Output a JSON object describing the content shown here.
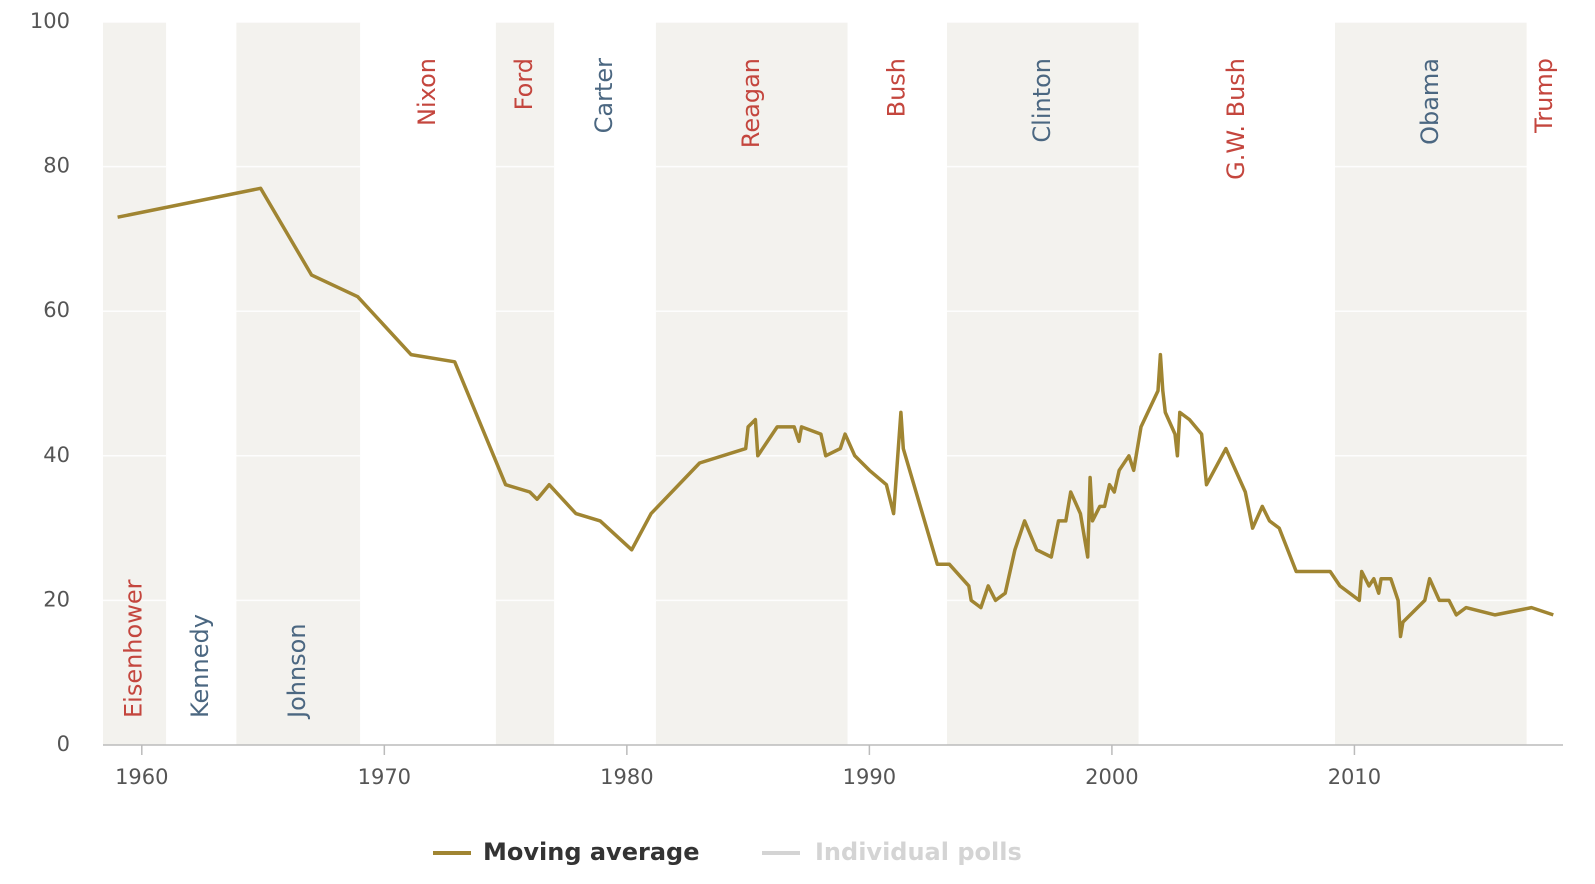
{
  "chart_data": {
    "type": "line",
    "xlim": [
      1958.4,
      2018.6
    ],
    "ylim": [
      0,
      100
    ],
    "xticks": [
      1960,
      1970,
      1980,
      1990,
      2000,
      2010
    ],
    "yticks": [
      0,
      20,
      40,
      60,
      80,
      100
    ],
    "grid": true,
    "legend": "bottom",
    "presidents": [
      {
        "name": "Eisenhower",
        "start": 1958.4,
        "end": 1961,
        "color": "#c4463e",
        "shaded": true
      },
      {
        "name": "Kennedy",
        "start": 1961,
        "end": 1963.9,
        "color": "#4b6781",
        "shaded": false
      },
      {
        "name": "Johnson",
        "start": 1963.9,
        "end": 1969,
        "color": "#4b6781",
        "shaded": true
      },
      {
        "name": "Nixon",
        "start": 1969,
        "end": 1974.6,
        "color": "#c4463e",
        "shaded": false
      },
      {
        "name": "Ford",
        "start": 1974.6,
        "end": 1977,
        "color": "#c4463e",
        "shaded": true
      },
      {
        "name": "Carter",
        "start": 1977,
        "end": 1981.2,
        "color": "#4b6781",
        "shaded": false
      },
      {
        "name": "Reagan",
        "start": 1981.2,
        "end": 1989.1,
        "color": "#c4463e",
        "shaded": true
      },
      {
        "name": "Bush",
        "start": 1989.1,
        "end": 1993.2,
        "color": "#c4463e",
        "shaded": false
      },
      {
        "name": "Clinton",
        "start": 1993.2,
        "end": 2001.1,
        "color": "#4b6781",
        "shaded": true
      },
      {
        "name": "G.W. Bush",
        "start": 2001.1,
        "end": 2009.2,
        "color": "#c4463e",
        "shaded": false
      },
      {
        "name": "Obama",
        "start": 2009.2,
        "end": 2017.1,
        "color": "#4b6781",
        "shaded": true
      },
      {
        "name": "Trump",
        "start": 2017.1,
        "end": 2018.6,
        "color": "#c4463e",
        "shaded": false
      }
    ],
    "series": [
      {
        "name": "Moving average",
        "color": "#a08532",
        "x": [
          1959.0,
          1964.9,
          1967.0,
          1968.9,
          1971.1,
          1972.9,
          1975.0,
          1976.0,
          1976.3,
          1976.8,
          1977.9,
          1978.9,
          1980.2,
          1981.0,
          1983.0,
          1984.9,
          1985.0,
          1985.3,
          1985.4,
          1986.2,
          1986.9,
          1987.1,
          1987.2,
          1988.0,
          1988.2,
          1988.8,
          1989.0,
          1989.4,
          1990.0,
          1990.7,
          1991.0,
          1991.3,
          1991.4,
          1992.8,
          1993.3,
          1994.1,
          1994.2,
          1994.6,
          1994.9,
          1995.2,
          1995.6,
          1996.0,
          1996.4,
          1996.9,
          1997.5,
          1997.8,
          1998.1,
          1998.3,
          1998.7,
          1999.0,
          1999.1,
          1999.2,
          1999.5,
          1999.7,
          1999.9,
          2000.1,
          2000.3,
          2000.7,
          2000.9,
          2001.2,
          2001.9,
          2002.0,
          2002.1,
          2002.2,
          2002.6,
          2002.7,
          2002.8,
          2003.2,
          2003.7,
          2003.9,
          2004.7,
          2005.5,
          2005.8,
          2006.2,
          2006.5,
          2006.9,
          2007.6,
          2009.0,
          2009.4,
          2010.2,
          2010.3,
          2010.6,
          2010.8,
          2011.0,
          2011.1,
          2011.5,
          2011.8,
          2011.9,
          2012.0,
          2012.9,
          2013.1,
          2013.5,
          2013.9,
          2014.2,
          2014.6,
          2015.8,
          2017.3,
          2018.2
        ],
        "values": [
          73,
          77,
          65,
          62,
          54,
          53,
          36,
          35,
          34,
          36,
          32,
          31,
          27,
          32,
          39,
          41,
          44,
          45,
          40,
          44,
          44,
          42,
          44,
          43,
          40,
          41,
          43,
          40,
          38,
          36,
          32,
          46,
          41,
          25,
          25,
          22,
          20,
          19,
          22,
          20,
          21,
          27,
          31,
          27,
          26,
          31,
          31,
          35,
          32,
          26,
          37,
          31,
          33,
          33,
          36,
          35,
          38,
          40,
          38,
          44,
          49,
          54,
          49,
          46,
          43,
          40,
          46,
          45,
          43,
          36,
          41,
          35,
          30,
          33,
          31,
          30,
          24,
          24,
          22,
          20,
          24,
          22,
          23,
          21,
          23,
          23,
          20,
          15,
          17,
          20,
          23,
          20,
          20,
          18,
          19,
          18,
          19,
          18
        ]
      },
      {
        "name": "Individual polls",
        "color": "#d4d4d4",
        "x": [],
        "values": []
      }
    ]
  }
}
